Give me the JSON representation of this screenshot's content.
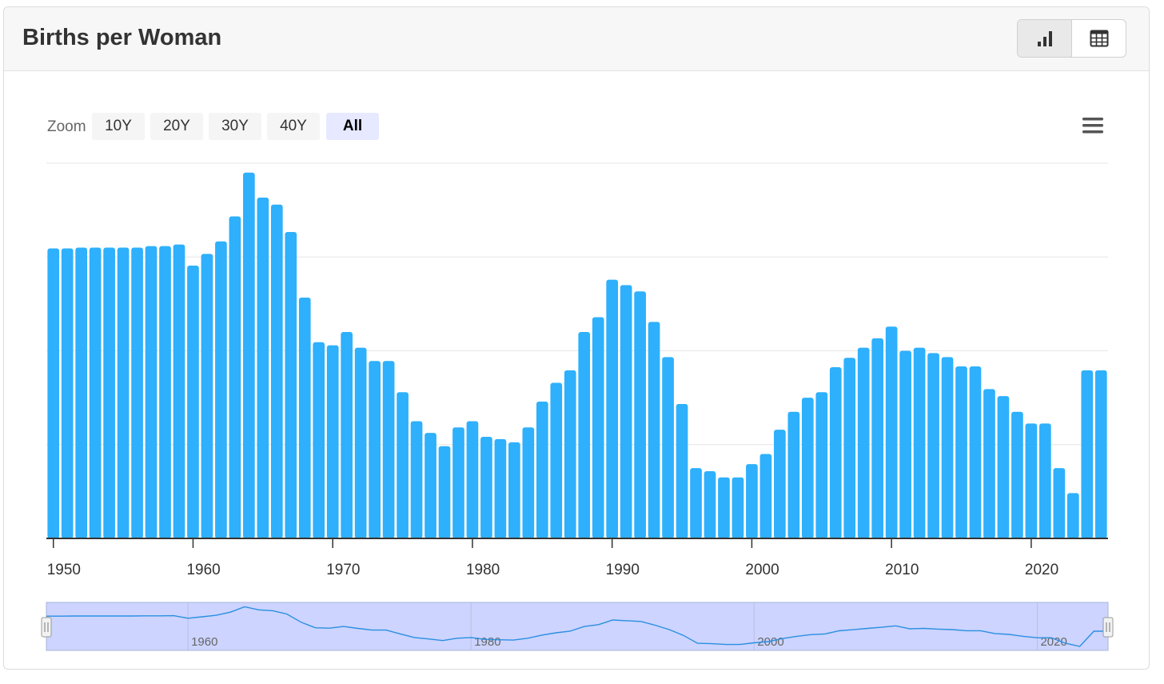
{
  "header": {
    "title": "Births per Woman",
    "views": [
      {
        "name": "chart-view",
        "icon": "bar-chart-icon",
        "active": true
      },
      {
        "name": "table-view",
        "icon": "table-icon",
        "active": false
      }
    ]
  },
  "zoom": {
    "label": "Zoom",
    "options": [
      "10Y",
      "20Y",
      "30Y",
      "40Y",
      "All"
    ],
    "selected": "All"
  },
  "menu": {
    "icon": "hamburger-menu-icon"
  },
  "navigator": {
    "labels": [
      "1960",
      "1980",
      "2000",
      "2020"
    ],
    "selection": [
      1950,
      2025
    ],
    "fill_color": "#ccd4ff",
    "line_color": "#2b8fe0"
  },
  "chart_data": {
    "type": "bar",
    "color": "#2eb0fc",
    "x_tick_labels": [
      "1950",
      "1960",
      "1970",
      "1980",
      "1990",
      "2000",
      "2010",
      "2020"
    ],
    "grid": true,
    "legend": "none",
    "x": [
      1950,
      1951,
      1952,
      1953,
      1954,
      1955,
      1956,
      1957,
      1958,
      1959,
      1960,
      1961,
      1962,
      1963,
      1964,
      1965,
      1966,
      1967,
      1968,
      1969,
      1970,
      1971,
      1972,
      1973,
      1974,
      1975,
      1976,
      1977,
      1978,
      1979,
      1980,
      1981,
      1982,
      1983,
      1984,
      1985,
      1986,
      1987,
      1988,
      1989,
      1990,
      1991,
      1992,
      1993,
      1994,
      1995,
      1996,
      1997,
      1998,
      1999,
      2000,
      2001,
      2002,
      2003,
      2004,
      2005,
      2006,
      2007,
      2008,
      2009,
      2010,
      2011,
      2012,
      2013,
      2014,
      2015,
      2016,
      2017,
      2018,
      2019,
      2020,
      2021,
      2022,
      2023,
      2024,
      2025
    ],
    "values": [
      3.71,
      3.71,
      3.72,
      3.72,
      3.72,
      3.72,
      3.72,
      3.74,
      3.74,
      3.76,
      3.49,
      3.64,
      3.8,
      4.12,
      4.68,
      4.36,
      4.27,
      3.92,
      3.08,
      2.51,
      2.47,
      2.64,
      2.44,
      2.27,
      2.27,
      1.87,
      1.5,
      1.35,
      1.18,
      1.42,
      1.5,
      1.3,
      1.27,
      1.23,
      1.42,
      1.75,
      1.99,
      2.15,
      2.64,
      2.83,
      3.31,
      3.24,
      3.16,
      2.77,
      2.32,
      1.72,
      0.9,
      0.86,
      0.78,
      0.78,
      0.95,
      1.08,
      1.39,
      1.62,
      1.8,
      1.87,
      2.19,
      2.31,
      2.44,
      2.56,
      2.71,
      2.4,
      2.44,
      2.37,
      2.32,
      2.2,
      2.2,
      1.91,
      1.82,
      1.62,
      1.47,
      1.47,
      0.9,
      0.58,
      2.15,
      2.15
    ],
    "ylim": [
      0,
      4.8
    ]
  }
}
